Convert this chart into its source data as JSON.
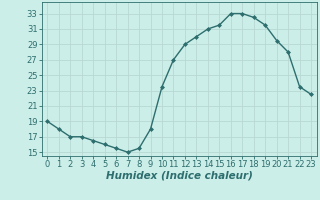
{
  "x": [
    0,
    1,
    2,
    3,
    4,
    5,
    6,
    7,
    8,
    9,
    10,
    11,
    12,
    13,
    14,
    15,
    16,
    17,
    18,
    19,
    20,
    21,
    22,
    23
  ],
  "y": [
    19,
    18,
    17,
    17,
    16.5,
    16,
    15.5,
    15,
    15.5,
    18,
    23.5,
    27,
    29,
    30,
    31,
    31.5,
    33,
    33,
    32.5,
    31.5,
    29.5,
    28,
    23.5,
    22.5
  ],
  "line_color": "#2d6e6e",
  "marker": "D",
  "marker_size": 2,
  "bg_color": "#cceee8",
  "grid_color": "#b8d8d4",
  "xlabel": "Humidex (Indice chaleur)",
  "xlabel_style": "italic",
  "xlabel_fontsize": 7.5,
  "ylabel_ticks": [
    15,
    17,
    19,
    21,
    23,
    25,
    27,
    29,
    31,
    33
  ],
  "xlim": [
    -0.5,
    23.5
  ],
  "ylim": [
    14.5,
    34.5
  ],
  "xticks": [
    0,
    1,
    2,
    3,
    4,
    5,
    6,
    7,
    8,
    9,
    10,
    11,
    12,
    13,
    14,
    15,
    16,
    17,
    18,
    19,
    20,
    21,
    22,
    23
  ],
  "tick_fontsize": 6
}
